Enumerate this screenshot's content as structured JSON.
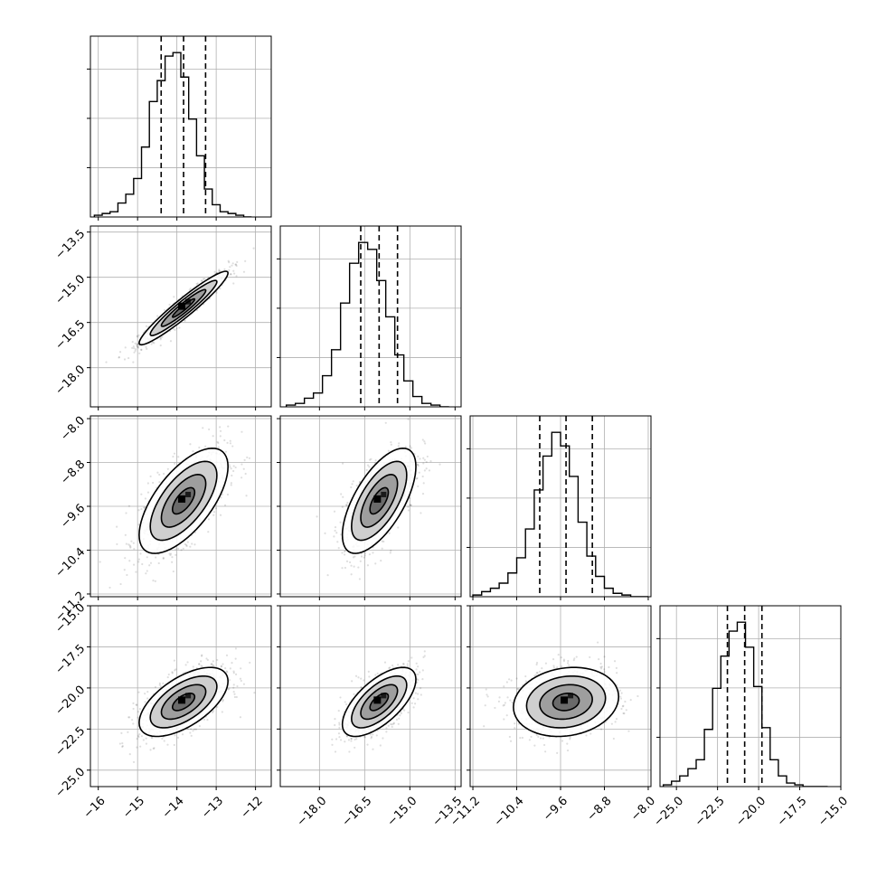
{
  "chart_data": {
    "type": "corner",
    "parameters": [
      {
        "range": [
          -16.2,
          -11.6
        ],
        "ticks": [
          -16,
          -15,
          -14,
          -13,
          -12
        ],
        "tick_labels": [
          "−16",
          "−15",
          "−14",
          "−13",
          "−12"
        ],
        "median": -13.83,
        "quantiles": [
          -14.4,
          -13.83,
          -13.27
        ],
        "histogram": {
          "bin_start": -16.1,
          "bin_width": 0.2,
          "counts": [
            1,
            2,
            3,
            8,
            13,
            22,
            40,
            66,
            78,
            92,
            94,
            80,
            56,
            35,
            16,
            7,
            3,
            2,
            1,
            0
          ]
        }
      },
      {
        "range": [
          -19.3,
          -13.3
        ],
        "ticks": [
          -18.0,
          -16.5,
          -15.0,
          -13.5
        ],
        "tick_labels": [
          "−18.0",
          "−16.5",
          "−15.0",
          "−13.5"
        ],
        "median": -16.02,
        "quantiles": [
          -16.63,
          -16.02,
          -15.41
        ],
        "histogram": {
          "bin_start": -19.1,
          "bin_width": 0.3,
          "counts": [
            1,
            2,
            5,
            8,
            18,
            33,
            60,
            83,
            95,
            91,
            73,
            52,
            30,
            15,
            6,
            2,
            1,
            0
          ]
        }
      },
      {
        "range": [
          -11.25,
          -7.95
        ],
        "ticks": [
          -11.2,
          -10.4,
          -9.6,
          -8.8,
          -8.0
        ],
        "tick_labels": [
          "−11.2",
          "−10.4",
          "−9.6",
          "−8.8",
          "−8.0"
        ],
        "median": -9.5,
        "quantiles": [
          -9.98,
          -9.5,
          -9.02
        ],
        "histogram": {
          "bin_start": -11.2,
          "bin_width": 0.16,
          "counts": [
            1,
            3,
            5,
            8,
            14,
            23,
            40,
            63,
            83,
            97,
            89,
            71,
            44,
            24,
            12,
            5,
            2,
            1,
            0,
            0
          ]
        }
      },
      {
        "range": [
          -26.0,
          -15.0
        ],
        "ticks": [
          -25.0,
          -22.5,
          -20.0,
          -17.5,
          -15.0
        ],
        "tick_labels": [
          "−25.0",
          "−22.5",
          "−20.0",
          "−17.5",
          "−15.0"
        ],
        "median": -20.85,
        "quantiles": [
          -21.9,
          -20.85,
          -19.8
        ],
        "histogram": {
          "bin_start": -25.8,
          "bin_width": 0.5,
          "counts": [
            1,
            3,
            6,
            10,
            15,
            32,
            55,
            73,
            87,
            92,
            78,
            56,
            33,
            15,
            6,
            2,
            1,
            0,
            0,
            0
          ]
        }
      }
    ],
    "pairs": [
      {
        "x": 0,
        "y": 1,
        "correlation": 0.95
      },
      {
        "x": 0,
        "y": 2,
        "correlation": 0.65
      },
      {
        "x": 1,
        "y": 2,
        "correlation": 0.65
      },
      {
        "x": 0,
        "y": 3,
        "correlation": 0.6
      },
      {
        "x": 1,
        "y": 3,
        "correlation": 0.65
      },
      {
        "x": 2,
        "y": 3,
        "correlation": 0.15
      }
    ],
    "contour_levels_sigma": [
      0.5,
      1.0,
      1.5,
      2.0
    ],
    "grid": true,
    "xlabel": "",
    "ylabel": "",
    "title": ""
  }
}
